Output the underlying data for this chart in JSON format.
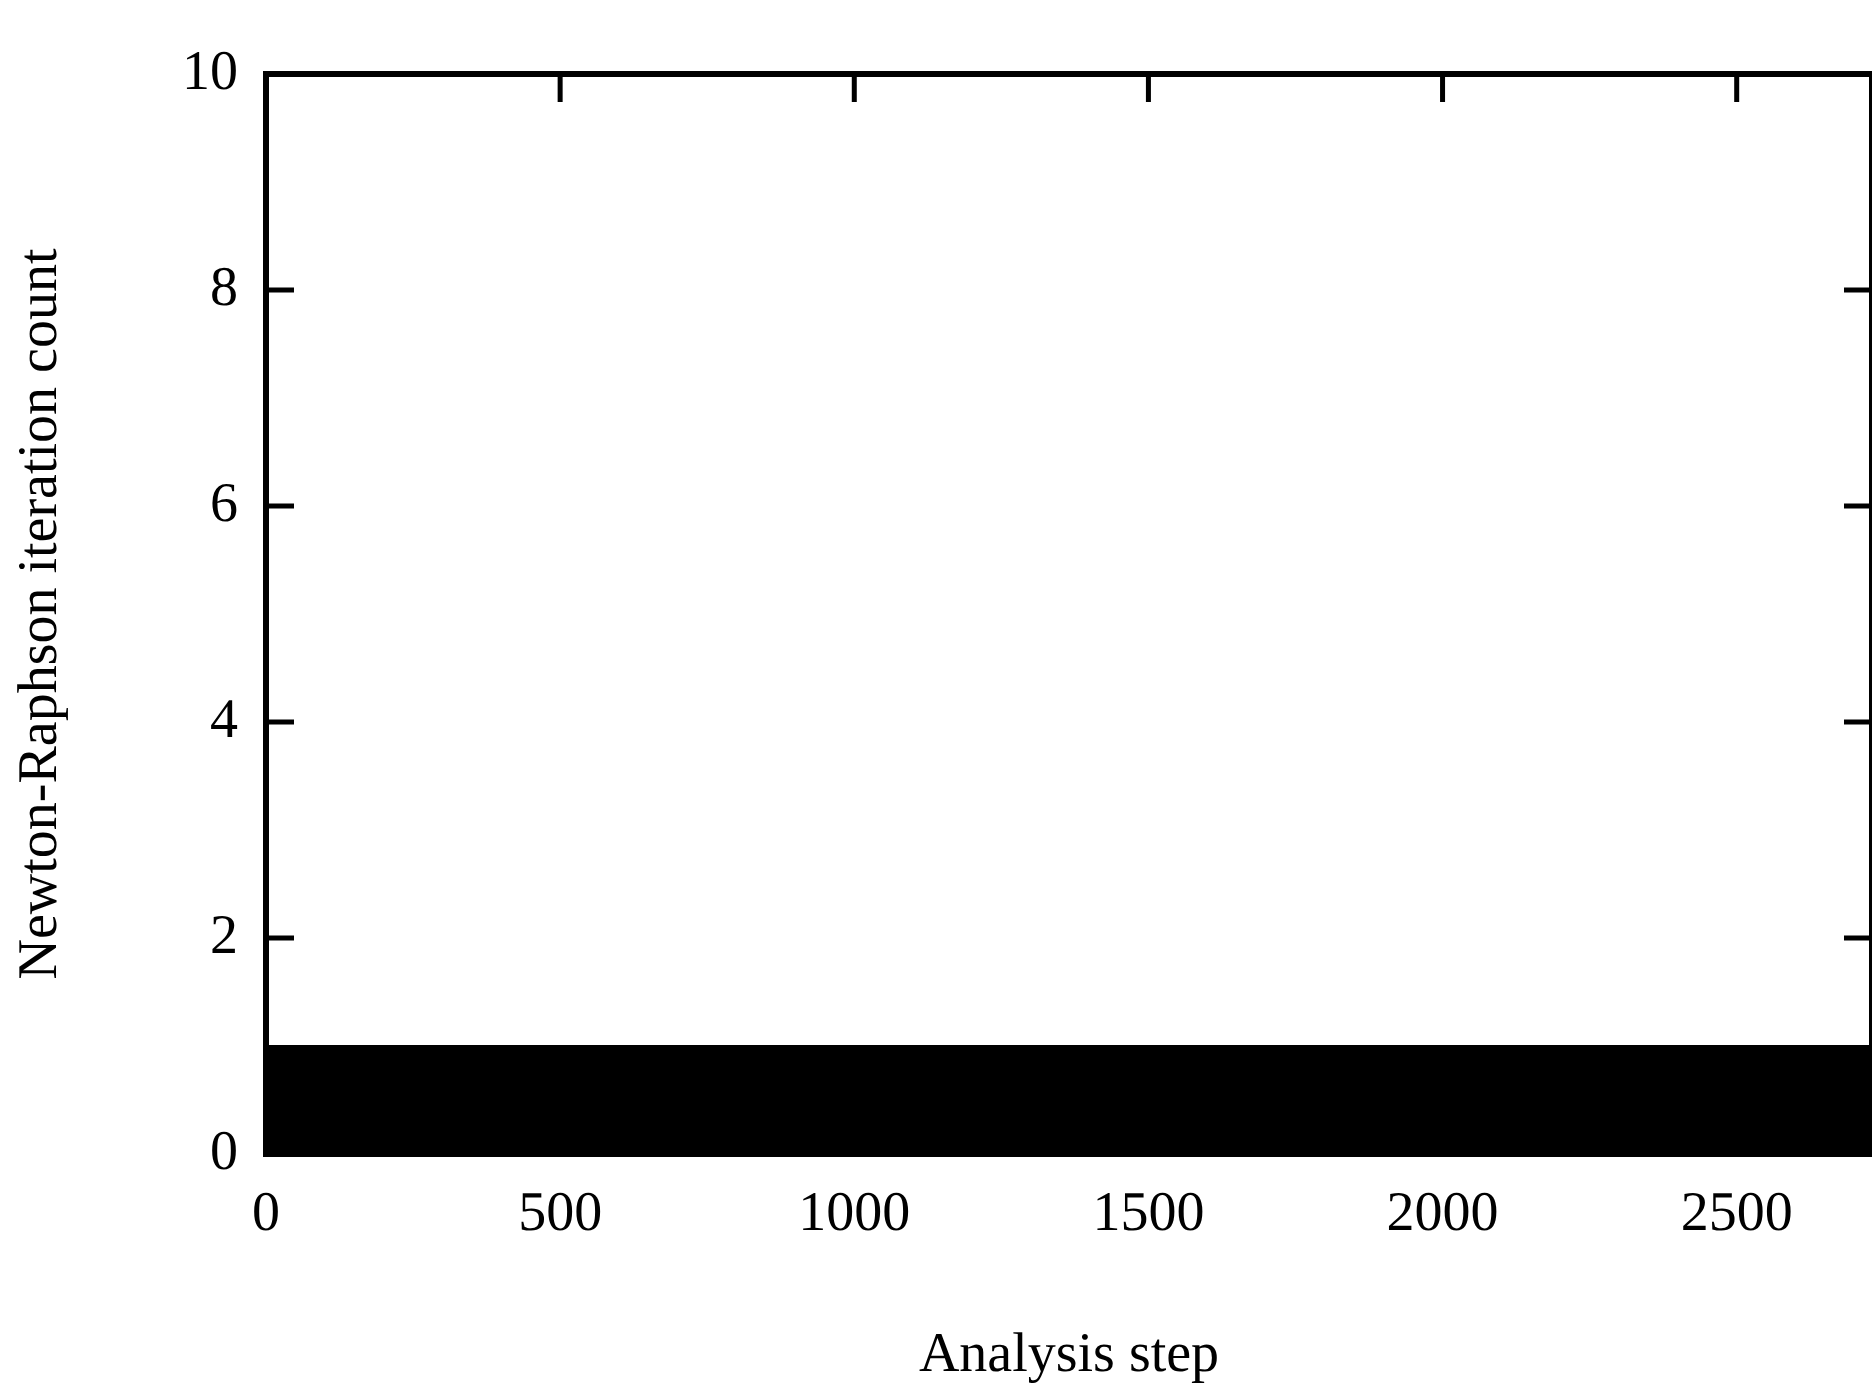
{
  "chart_data": {
    "type": "area",
    "xlabel": "Analysis step",
    "ylabel": "Newton-Raphson iteration count",
    "x": [
      0,
      2730
    ],
    "series": [
      {
        "color": "#000000",
        "values": [
          1,
          1
        ]
      }
    ],
    "xlim": [
      0,
      2730
    ],
    "xticks": [
      0,
      500,
      1000,
      1500,
      2000,
      2500
    ],
    "ylim": [
      0,
      10
    ],
    "yticks": [
      0,
      2,
      4,
      6,
      8,
      10
    ],
    "grid": false,
    "legend": false
  }
}
